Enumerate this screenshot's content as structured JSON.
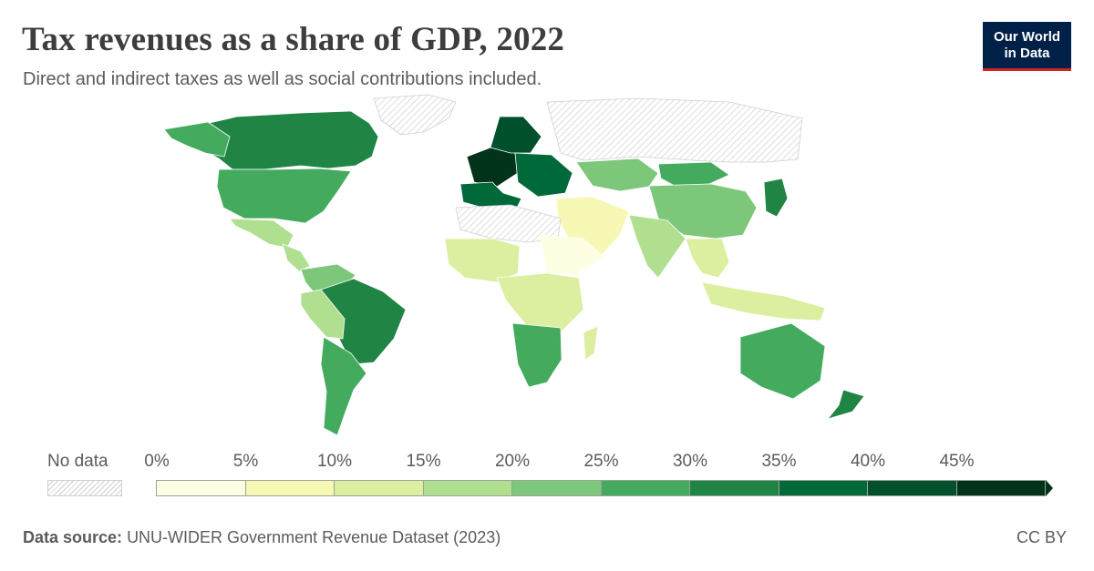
{
  "header": {
    "title": "Tax revenues as a share of GDP, 2022",
    "subtitle": "Direct and indirect taxes as well as social contributions included."
  },
  "logo": {
    "line1": "Our World",
    "line2": "in Data",
    "bg": "#002147",
    "accent": "#ce261e"
  },
  "legend": {
    "no_data_label": "No data",
    "ticks": [
      "0%",
      "5%",
      "10%",
      "15%",
      "20%",
      "25%",
      "30%",
      "35%",
      "40%",
      "45%"
    ],
    "bins": [
      {
        "min": 0,
        "max": 5,
        "color": "#fefee3"
      },
      {
        "min": 5,
        "max": 10,
        "color": "#f6f8b4"
      },
      {
        "min": 10,
        "max": 15,
        "color": "#dcee9f"
      },
      {
        "min": 15,
        "max": 20,
        "color": "#b0df8f"
      },
      {
        "min": 20,
        "max": 25,
        "color": "#7cc77a"
      },
      {
        "min": 25,
        "max": 30,
        "color": "#44ab5e"
      },
      {
        "min": 30,
        "max": 35,
        "color": "#208444"
      },
      {
        "min": 35,
        "max": 40,
        "color": "#00693a"
      },
      {
        "min": 40,
        "max": 45,
        "color": "#00502b"
      },
      {
        "min": 45,
        "max": 50,
        "color": "#00331a"
      }
    ],
    "open_ended_top": true
  },
  "map_data": {
    "no_data_color": "#e8e8e8",
    "regions": [
      {
        "region": "Canada",
        "value_bin": "30-35",
        "color": "#208444"
      },
      {
        "region": "United States",
        "value_bin": "25-30",
        "color": "#44ab5e"
      },
      {
        "region": "Alaska",
        "value_bin": "25-30",
        "color": "#44ab5e"
      },
      {
        "region": "Greenland",
        "value_bin": "no data",
        "color": "#e8e8e8"
      },
      {
        "region": "Mexico",
        "value_bin": "15-20",
        "color": "#b0df8f"
      },
      {
        "region": "Central America",
        "value_bin": "15-20",
        "color": "#b0df8f"
      },
      {
        "region": "Northern South America",
        "value_bin": "20-25",
        "color": "#7cc77a"
      },
      {
        "region": "Brazil",
        "value_bin": "30-35",
        "color": "#208444"
      },
      {
        "region": "Peru and Bolivia",
        "value_bin": "15-20",
        "color": "#b0df8f"
      },
      {
        "region": "Argentina and Chile",
        "value_bin": "25-30",
        "color": "#44ab5e"
      },
      {
        "region": "Western Europe",
        "value_bin": "45+",
        "color": "#00331a"
      },
      {
        "region": "Nordics",
        "value_bin": "40-45",
        "color": "#00502b"
      },
      {
        "region": "Iberia and Italy",
        "value_bin": "35-40",
        "color": "#00693a"
      },
      {
        "region": "Eastern Europe",
        "value_bin": "35-40",
        "color": "#00693a"
      },
      {
        "region": "Russia",
        "value_bin": "no data",
        "color": "#e8e8e8"
      },
      {
        "region": "Kazakhstan",
        "value_bin": "20-25",
        "color": "#7cc77a"
      },
      {
        "region": "Mongolia",
        "value_bin": "25-30",
        "color": "#44ab5e"
      },
      {
        "region": "China",
        "value_bin": "20-25",
        "color": "#7cc77a"
      },
      {
        "region": "Japan",
        "value_bin": "30-35",
        "color": "#208444"
      },
      {
        "region": "India",
        "value_bin": "15-20",
        "color": "#b0df8f"
      },
      {
        "region": "Middle East",
        "value_bin": "5-10",
        "color": "#f6f8b4"
      },
      {
        "region": "North Africa",
        "value_bin": "no data",
        "color": "#e8e8e8"
      },
      {
        "region": "West Africa",
        "value_bin": "10-15",
        "color": "#dcee9f"
      },
      {
        "region": "Horn of Africa",
        "value_bin": "0-5",
        "color": "#fefee3"
      },
      {
        "region": "Central and East Africa",
        "value_bin": "10-15",
        "color": "#dcee9f"
      },
      {
        "region": "Southern Africa",
        "value_bin": "25-30",
        "color": "#44ab5e"
      },
      {
        "region": "Madagascar",
        "value_bin": "10-15",
        "color": "#dcee9f"
      },
      {
        "region": "Southeast Asia",
        "value_bin": "10-15",
        "color": "#dcee9f"
      },
      {
        "region": "Indonesia",
        "value_bin": "10-15",
        "color": "#dcee9f"
      },
      {
        "region": "Australia",
        "value_bin": "25-30",
        "color": "#44ab5e"
      },
      {
        "region": "New Zealand",
        "value_bin": "30-35",
        "color": "#208444"
      }
    ]
  },
  "footer": {
    "source_label": "Data source:",
    "source_text": "UNU-WIDER Government Revenue Dataset (2023)",
    "license": "CC BY"
  }
}
